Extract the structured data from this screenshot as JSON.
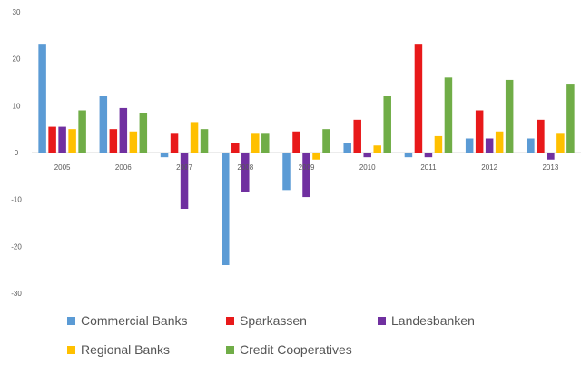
{
  "chart_data": {
    "type": "bar",
    "categories": [
      "2005",
      "2006",
      "2007",
      "2008",
      "2009",
      "2010",
      "2011",
      "2012",
      "2013"
    ],
    "ylim": [
      -30,
      30
    ],
    "yticks": [
      "30",
      "20",
      "10",
      "0",
      "-10",
      "-20",
      "-30"
    ],
    "grid": false,
    "legend_position": "bottom",
    "series": [
      {
        "name": "Commercial Banks",
        "color": "#5b9bd5",
        "values": [
          23,
          12,
          -1,
          -24,
          -8,
          2,
          -1,
          3,
          3
        ]
      },
      {
        "name": "Sparkassen",
        "color": "#e8191a",
        "values": [
          5.5,
          5,
          4,
          2,
          4.5,
          7,
          23,
          9,
          7
        ]
      },
      {
        "name": "Landesbanken",
        "color": "#7030a0",
        "values": [
          5.5,
          9.5,
          -12,
          -8.5,
          -9.5,
          -1,
          -1,
          3,
          -1.5
        ]
      },
      {
        "name": "Regional Banks",
        "color": "#ffc000",
        "values": [
          5,
          4.5,
          6.5,
          4,
          -1.5,
          1.5,
          3.5,
          4.5,
          4
        ]
      },
      {
        "name": "Credit Cooperatives",
        "color": "#70ad47",
        "values": [
          9,
          8.5,
          5,
          4,
          5,
          12,
          16,
          15.5,
          14.5
        ]
      }
    ]
  }
}
